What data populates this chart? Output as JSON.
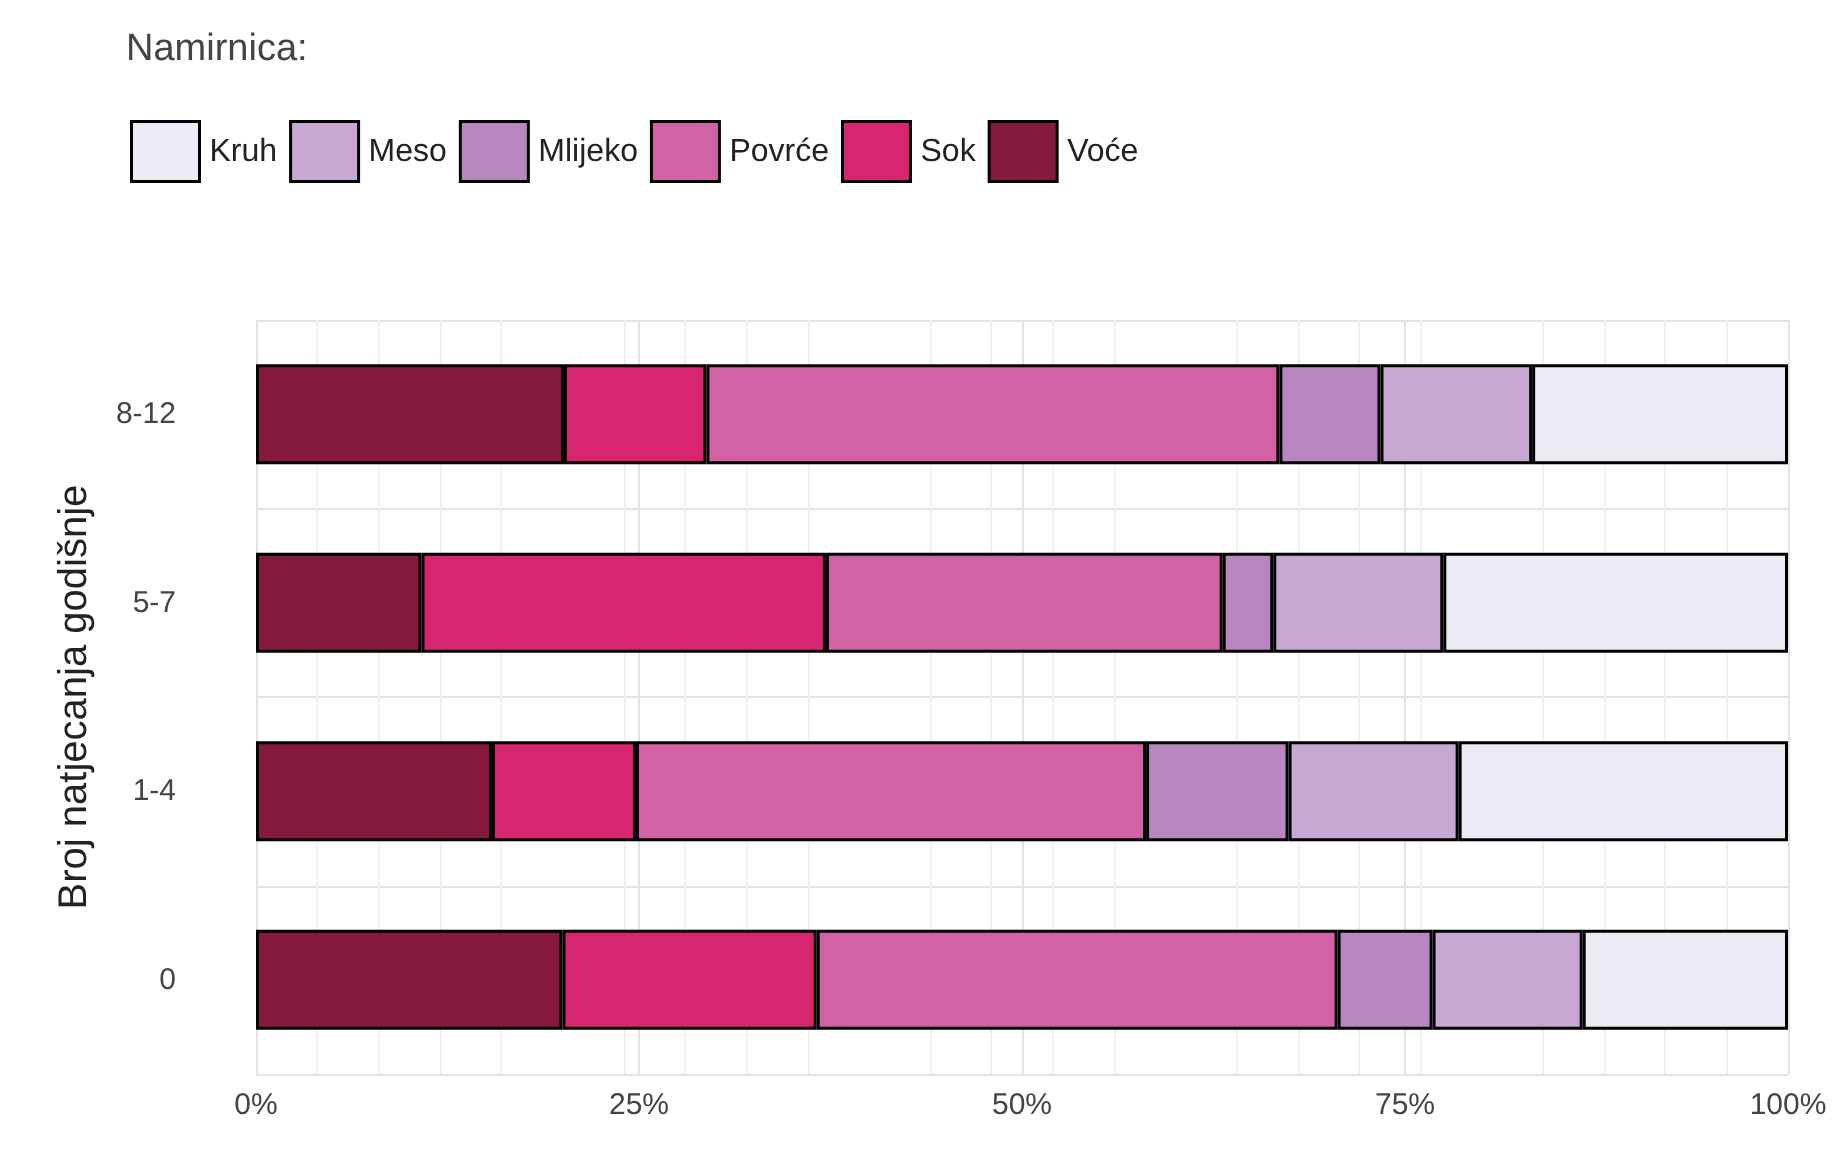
{
  "chart_data": {
    "type": "bar",
    "orientation": "horizontal",
    "stacked": true,
    "ylabel": "Broj natjecanja godišnje",
    "legend_title": "Namirnica:",
    "legend": "top left",
    "grid": true,
    "categories": [
      "8-12",
      "5-7",
      "1-4",
      "0"
    ],
    "xlim": [
      0,
      100
    ],
    "xticks": [
      {
        "value": 0,
        "label": "0%"
      },
      {
        "value": 25,
        "label": "25%"
      },
      {
        "value": 50,
        "label": "50%"
      },
      {
        "value": 75,
        "label": "75%"
      },
      {
        "value": 100,
        "label": "100%"
      }
    ],
    "series": [
      {
        "name": "Voće",
        "color": "#851a3c",
        "values": [
          20.1,
          10.8,
          15.4,
          20.0
        ]
      },
      {
        "name": "Sok",
        "color": "#d8256f",
        "values": [
          9.3,
          26.4,
          9.4,
          16.6
        ]
      },
      {
        "name": "Povrće",
        "color": "#d162a4",
        "values": [
          37.4,
          25.9,
          33.3,
          34.0
        ]
      },
      {
        "name": "Mlijeko",
        "color": "#b987c0",
        "values": [
          6.6,
          3.3,
          9.3,
          6.2
        ]
      },
      {
        "name": "Meso",
        "color": "#c6a8d2",
        "values": [
          9.9,
          11.1,
          11.1,
          9.8
        ]
      },
      {
        "name": "Kruh",
        "color": "#ecebf4",
        "values": [
          16.7,
          22.5,
          21.5,
          13.4
        ]
      }
    ]
  }
}
